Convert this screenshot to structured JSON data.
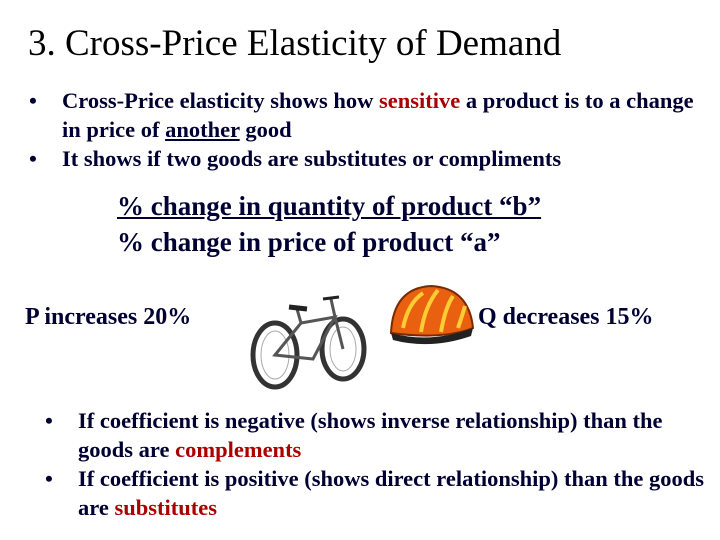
{
  "title": "3. Cross-Price Elasticity of Demand",
  "bullets": [
    [
      "Cross-Price elasticity shows how ",
      "sensitive",
      " a product is to a change in price of ",
      "another",
      " good"
    ],
    [
      "It shows if two goods are substitutes or compliments"
    ]
  ],
  "formula": {
    "numerator": "% change in quantity of product “b”",
    "denominator": "% change in price of product “a”"
  },
  "example": {
    "left": "P increases 20%",
    "right": "Q decreases 15%"
  },
  "conclusions": [
    [
      "If coefficient is negative (shows inverse relationship) than the goods are ",
      "complements"
    ],
    [
      "If coefficient is positive (shows direct relationship) than the goods are ",
      "substitutes"
    ]
  ]
}
